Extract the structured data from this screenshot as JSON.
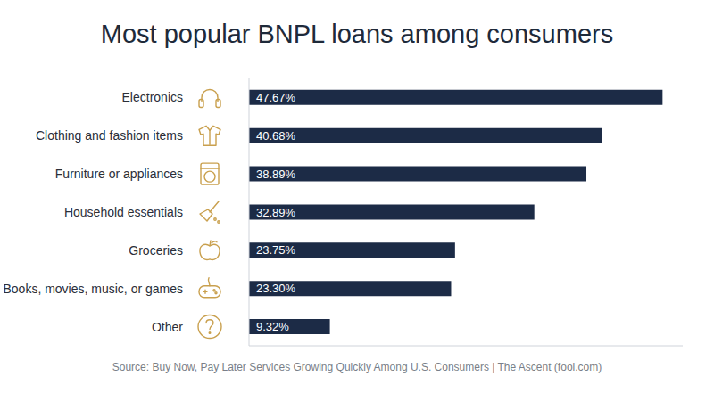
{
  "chart_data": {
    "type": "bar",
    "title": "Most popular BNPL loans among consumers",
    "source": "Source: Buy Now, Pay Later Services Growing Quickly Among U.S. Consumers | The Ascent (fool.com)",
    "categories": [
      "Electronics",
      "Clothing and fashion items",
      "Furniture or appliances",
      "Household essentials",
      "Groceries",
      "Books, movies, music, or games",
      "Other"
    ],
    "values": [
      47.67,
      40.68,
      38.89,
      32.89,
      23.75,
      23.3,
      9.32
    ],
    "value_labels": [
      "47.67%",
      "40.68%",
      "38.89%",
      "32.89%",
      "23.75%",
      "23.30%",
      "9.32%"
    ],
    "color": "#1c2b46",
    "xlim": [
      0,
      50
    ],
    "orientation": "horizontal",
    "data_labels": true,
    "tick_labels": "y",
    "grid": false
  }
}
